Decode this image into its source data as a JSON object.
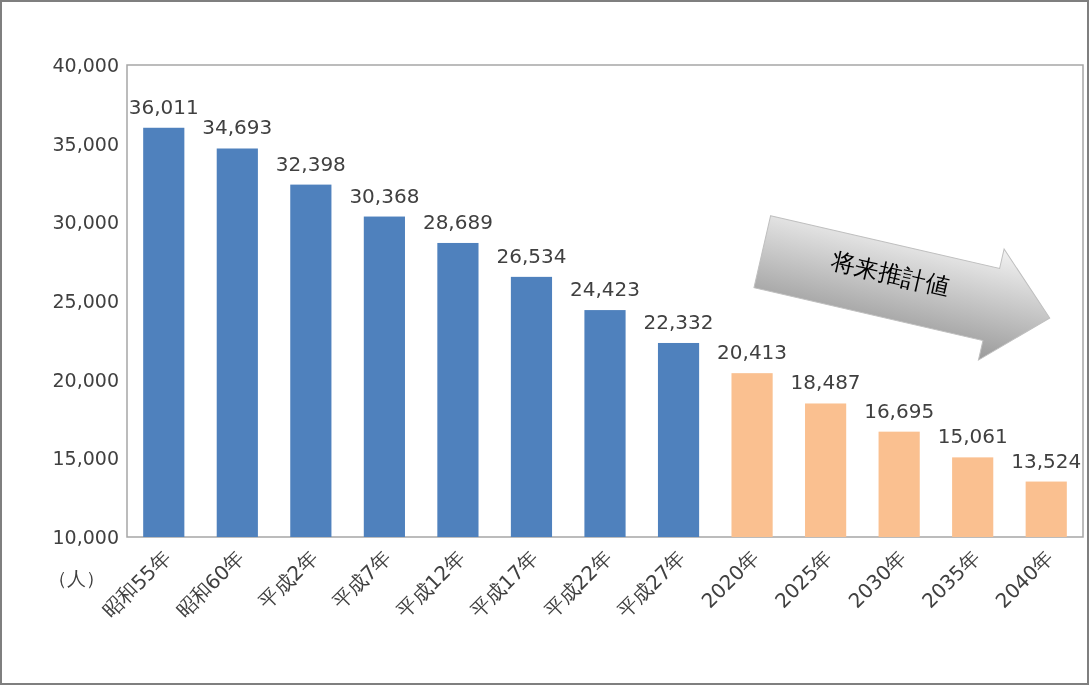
{
  "chart_data": {
    "type": "bar",
    "ylabel": "（人）",
    "categories": [
      "昭和55年",
      "昭和60年",
      "平成2年",
      "平成7年",
      "平成12年",
      "平成17年",
      "平成22年",
      "平成27年",
      "2020年",
      "2025年",
      "2030年",
      "2035年",
      "2040年"
    ],
    "values": [
      36011,
      34693,
      32398,
      30368,
      28689,
      26534,
      24423,
      22332,
      20413,
      18487,
      16695,
      15061,
      13524
    ],
    "colors": [
      "#4f81bd",
      "#4f81bd",
      "#4f81bd",
      "#4f81bd",
      "#4f81bd",
      "#4f81bd",
      "#4f81bd",
      "#4f81bd",
      "#fac090",
      "#fac090",
      "#fac090",
      "#fac090",
      "#fac090"
    ],
    "ylim": [
      10000,
      40000
    ],
    "yticks": [
      {
        "value": 10000,
        "label": "10,000"
      },
      {
        "value": 15000,
        "label": "15,000"
      },
      {
        "value": 20000,
        "label": "20,000"
      },
      {
        "value": 25000,
        "label": "25,000"
      },
      {
        "value": 30000,
        "label": "30,000"
      },
      {
        "value": 35000,
        "label": "35,000"
      },
      {
        "value": 40000,
        "label": "40,000"
      }
    ],
    "value_labels": [
      "36,011",
      "34,693",
      "32,398",
      "30,368",
      "28,689",
      "26,534",
      "24,423",
      "22,332",
      "20,413",
      "18,487",
      "16,695",
      "15,061",
      "13,524"
    ],
    "annotations": [
      "将来推計値"
    ]
  }
}
